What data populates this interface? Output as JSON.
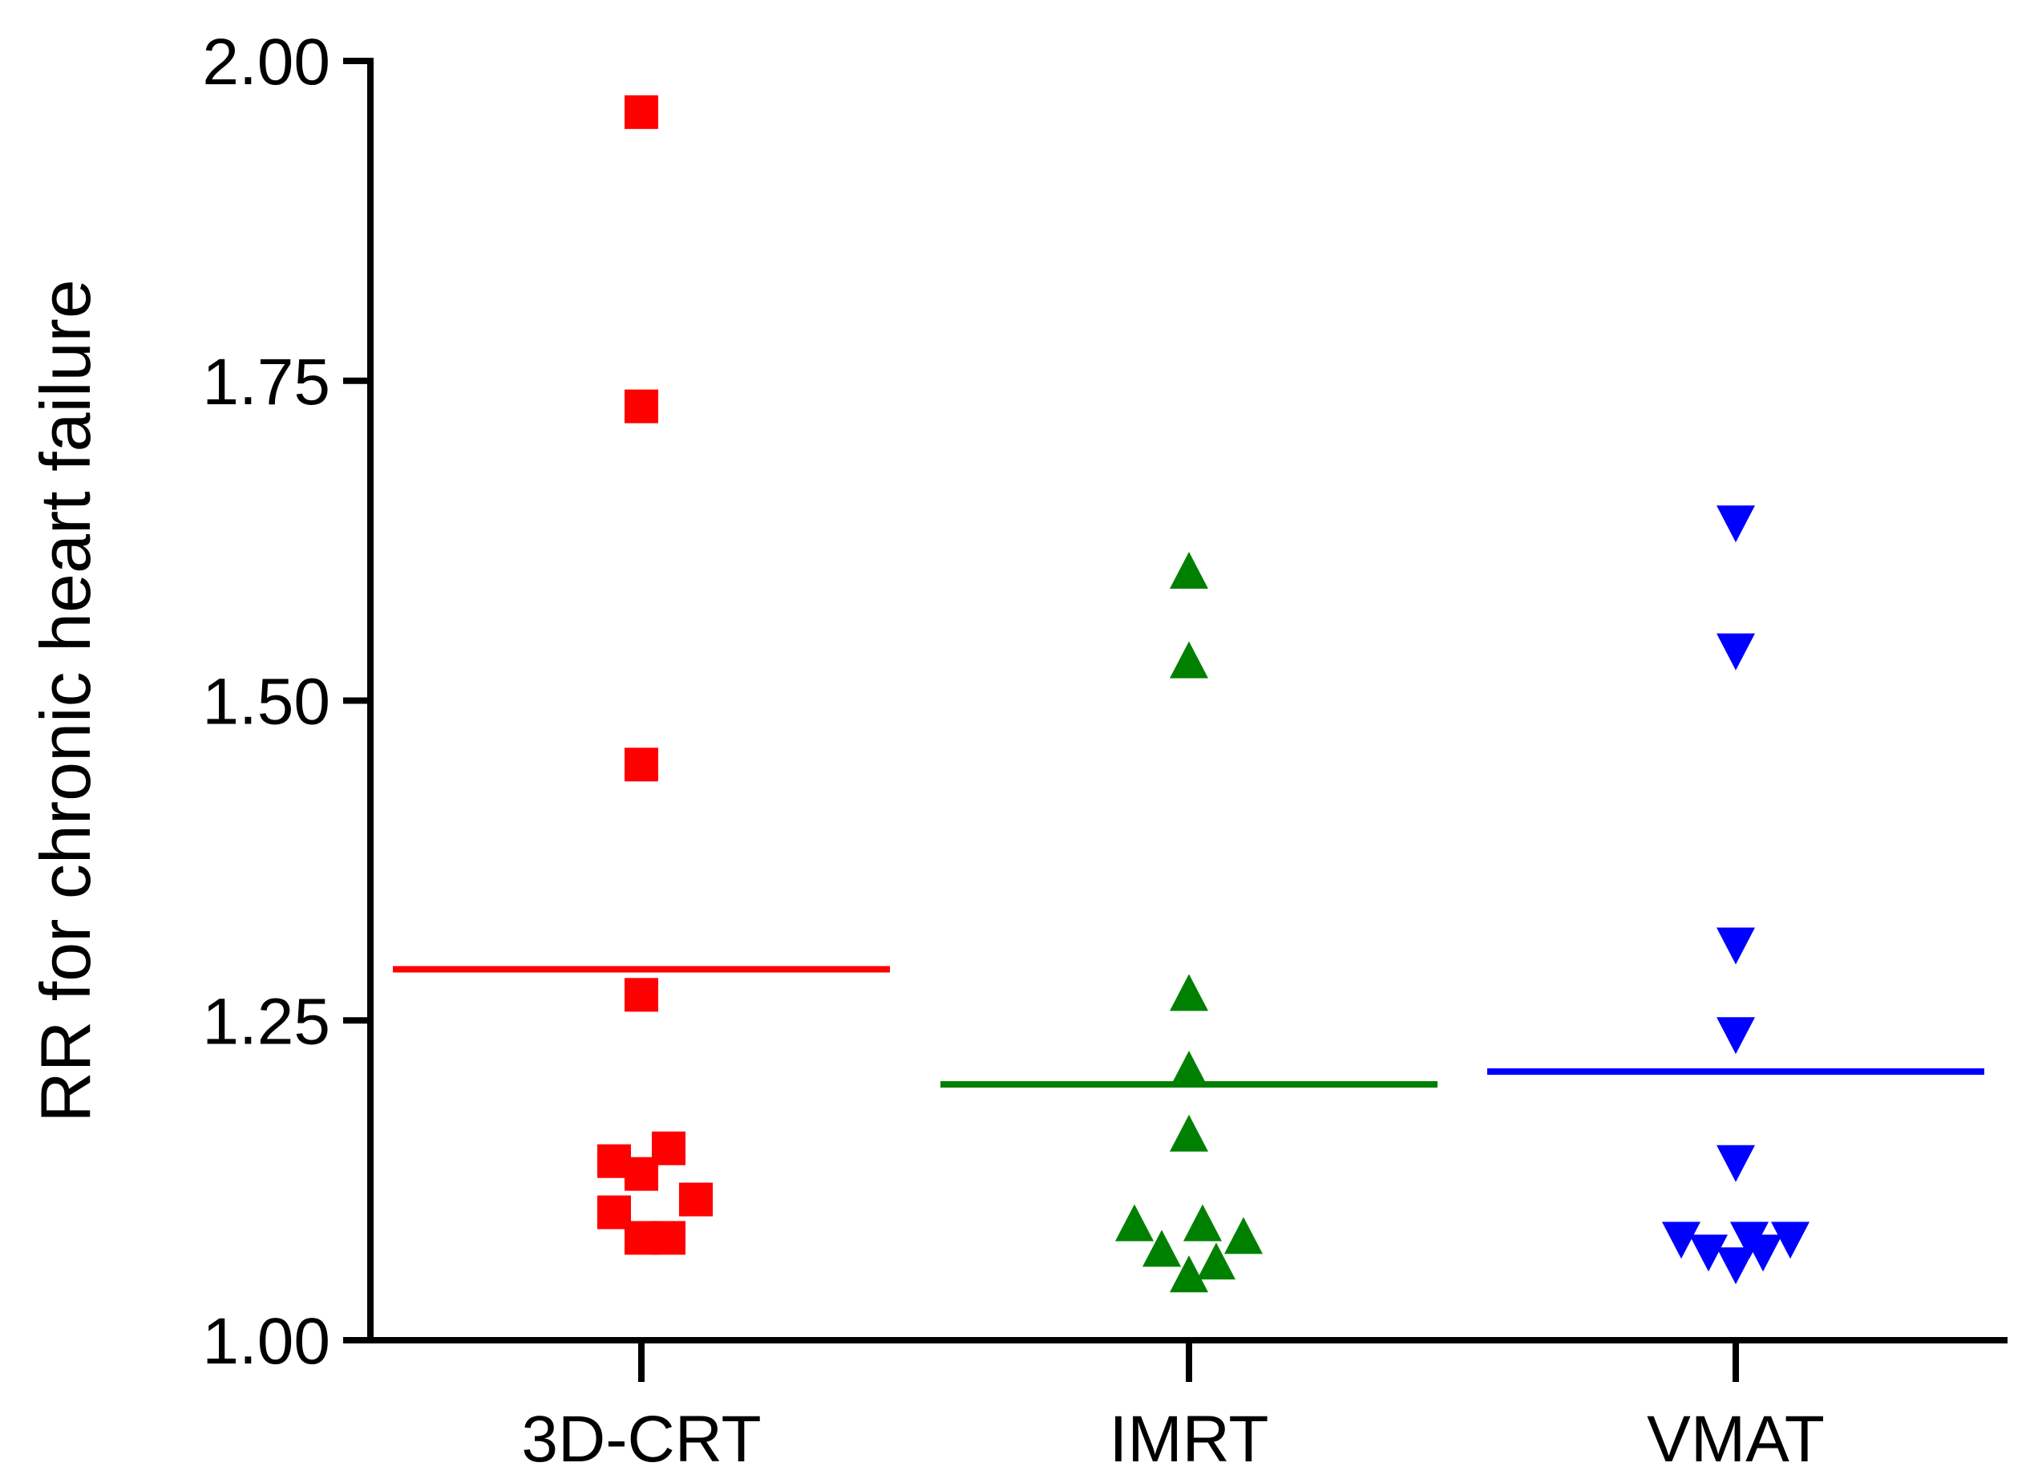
{
  "chart_data": {
    "type": "scatter",
    "title": "",
    "xlabel": "",
    "ylabel": "RR for chronic heart failure",
    "categories": [
      "3D-CRT",
      "IMRT",
      "VMAT"
    ],
    "ylim": [
      1.0,
      2.0
    ],
    "yticks": [
      1.0,
      1.25,
      1.5,
      1.75,
      2.0
    ],
    "ytick_labels": [
      "1.00",
      "1.25",
      "1.50",
      "1.75",
      "2.00"
    ],
    "grid": false,
    "series": [
      {
        "category": "3D-CRT",
        "marker": "square",
        "color": "#ff0000",
        "mean": 1.29,
        "points": [
          {
            "x_offset": 0,
            "y": 1.96
          },
          {
            "x_offset": 0,
            "y": 1.73
          },
          {
            "x_offset": 0,
            "y": 1.45
          },
          {
            "x_offset": 0,
            "y": 1.27
          },
          {
            "x_offset": -0.1,
            "y": 1.14
          },
          {
            "x_offset": 0.1,
            "y": 1.15
          },
          {
            "x_offset": 0,
            "y": 1.13
          },
          {
            "x_offset": -0.1,
            "y": 1.1
          },
          {
            "x_offset": 0.2,
            "y": 1.11
          },
          {
            "x_offset": 0,
            "y": 1.08
          },
          {
            "x_offset": 0.1,
            "y": 1.08
          }
        ]
      },
      {
        "category": "IMRT",
        "marker": "triangle-up",
        "color": "#008000",
        "mean": 1.2,
        "points": [
          {
            "x_offset": 0,
            "y": 1.6
          },
          {
            "x_offset": 0,
            "y": 1.53
          },
          {
            "x_offset": 0,
            "y": 1.27
          },
          {
            "x_offset": 0,
            "y": 1.21
          },
          {
            "x_offset": 0,
            "y": 1.16
          },
          {
            "x_offset": -0.2,
            "y": 1.09
          },
          {
            "x_offset": 0.05,
            "y": 1.09
          },
          {
            "x_offset": 0.2,
            "y": 1.08
          },
          {
            "x_offset": -0.1,
            "y": 1.07
          },
          {
            "x_offset": 0.1,
            "y": 1.06
          },
          {
            "x_offset": 0,
            "y": 1.05
          }
        ]
      },
      {
        "category": "VMAT",
        "marker": "triangle-down",
        "color": "#0000ff",
        "mean": 1.21,
        "points": [
          {
            "x_offset": 0,
            "y": 1.64
          },
          {
            "x_offset": 0,
            "y": 1.54
          },
          {
            "x_offset": 0,
            "y": 1.31
          },
          {
            "x_offset": 0,
            "y": 1.24
          },
          {
            "x_offset": 0,
            "y": 1.14
          },
          {
            "x_offset": -0.2,
            "y": 1.08
          },
          {
            "x_offset": -0.1,
            "y": 1.07
          },
          {
            "x_offset": 0.05,
            "y": 1.08
          },
          {
            "x_offset": 0,
            "y": 1.06
          },
          {
            "x_offset": 0.1,
            "y": 1.07
          },
          {
            "x_offset": 0.2,
            "y": 1.08
          }
        ]
      }
    ]
  }
}
